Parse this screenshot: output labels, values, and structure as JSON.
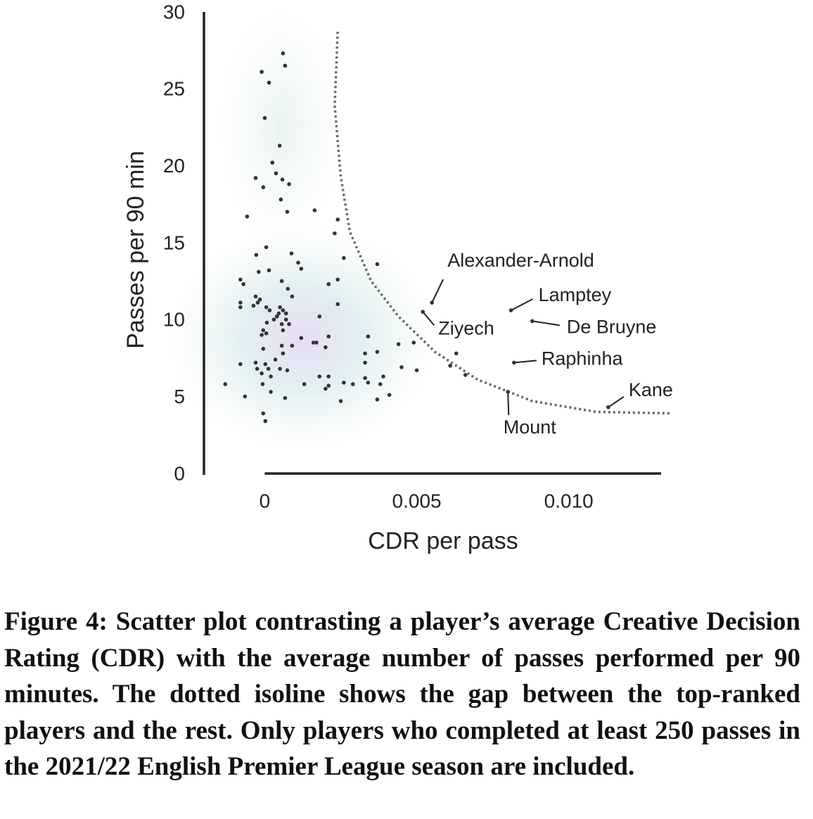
{
  "chart_data": {
    "type": "scatter",
    "xlabel": "CDR per pass",
    "ylabel": "Passes per 90 min",
    "xlim": [
      -0.002,
      0.0135
    ],
    "ylim": [
      0,
      30
    ],
    "xticks": [
      0,
      0.005,
      {
        "value": 0.01,
        "label": "0.010"
      }
    ],
    "yticks": [
      0,
      5,
      10,
      15,
      20,
      25,
      30
    ],
    "color": "#333333",
    "x": [
      0.0006,
      0.00067,
      -0.0001,
      0.00014,
      0,
      0.00049,
      0.00025,
      -0.0003,
      0.00037,
      0.00058,
      -5e-05,
      0.0008,
      0.00053,
      0.00074,
      0.00164,
      -0.00058,
      0.0024,
      0.0023,
      5e-05,
      0.00088,
      -0.00028,
      0.0026,
      0.0037,
      0.0011,
      0.0012,
      0.00014,
      -0.0002,
      -0.0008,
      -0.0007,
      0.00056,
      0.0021,
      0.0024,
      0.00076,
      0.0009,
      -0.0003,
      -0.00023,
      -0.00016,
      -0.0008,
      -0.0008,
      -0.00037,
      5e-05,
      0.00016,
      0.0005,
      0.0006,
      0.0007,
      0.00046,
      0.0004,
      0.0018,
      0.0024,
      0.0003,
      0.0007,
      7e-05,
      0.00056,
      0.0008,
      -5e-05,
      -0.0001,
      5e-05,
      0.0006,
      0.0012,
      0.0021,
      0.0016,
      0.0017,
      0.0034,
      0.00056,
      -5e-05,
      0.0009,
      0.002,
      0.0044,
      0.0049,
      0.0006,
      0.0037,
      0.0033,
      0.0063,
      -0.0008,
      -0.0003,
      0.00035,
      2e-05,
      0.00012,
      0.0005,
      0.00074,
      -0.00025,
      0.0033,
      0.0045,
      0.005,
      0.0061,
      -0.0001,
      0.0002,
      0.0018,
      0.0021,
      0.0066,
      0.0033,
      0.0034,
      0.0039,
      -0.0013,
      -7e-05,
      0.0013,
      0.0026,
      0.0029,
      0.002,
      0.0021,
      0.0038,
      0.0002,
      -0.00065,
      0.00067,
      0.0025,
      0.0037,
      0.0041,
      -5e-05,
      2e-05
    ],
    "y": [
      27.4,
      26.6,
      26.2,
      25.5,
      23.2,
      21.4,
      20.3,
      19.3,
      19.6,
      19.2,
      18.7,
      18.9,
      17.9,
      17.1,
      17.2,
      16.8,
      16.6,
      15.7,
      14.8,
      14.4,
      14.3,
      14.1,
      13.7,
      13.8,
      13.4,
      13.3,
      13.2,
      12.7,
      12.4,
      12.6,
      12.4,
      12.7,
      12.1,
      11.6,
      11.6,
      11.2,
      11.4,
      11.2,
      10.9,
      11.0,
      10.9,
      10.7,
      10.9,
      10.7,
      10.5,
      10.5,
      10.3,
      10.3,
      11.1,
      10.1,
      10.1,
      9.9,
      9.8,
      9.8,
      9.4,
      9.1,
      9.2,
      9.4,
      8.9,
      9.0,
      8.6,
      8.6,
      9.0,
      8.4,
      8.2,
      8.4,
      8.3,
      8.5,
      8.6,
      7.9,
      8.0,
      7.9,
      7.9,
      7.2,
      7.3,
      7.5,
      7.2,
      6.9,
      6.9,
      6.8,
      6.9,
      7.3,
      7.0,
      6.8,
      7.1,
      6.6,
      6.4,
      6.4,
      6.4,
      6.5,
      6.3,
      6.0,
      6.4,
      5.9,
      5.9,
      5.9,
      6.0,
      5.9,
      5.6,
      5.8,
      5.9,
      5.4,
      5.1,
      5.0,
      4.8,
      4.9,
      5.2,
      4.0,
      3.5
    ],
    "annotations": [
      {
        "text": "Alexander-Arnold",
        "x": 0.0055,
        "y": 11.2
      },
      {
        "text": "Ziyech",
        "x": 0.0052,
        "y": 10.6
      },
      {
        "text": "Lamptey",
        "x": 0.0081,
        "y": 10.7
      },
      {
        "text": "De Bruyne",
        "x": 0.0088,
        "y": 10.0
      },
      {
        "text": "Raphinha",
        "x": 0.0082,
        "y": 7.3
      },
      {
        "text": "Mount",
        "x": 0.008,
        "y": 5.4
      },
      {
        "text": "Kane",
        "x": 0.0113,
        "y": 4.4
      }
    ],
    "isoline": {
      "x": [
        0.0024,
        0.0023,
        0.0025,
        0.0028,
        0.0035,
        0.0044,
        0.0056,
        0.007,
        0.0088,
        0.0109,
        0.0134
      ],
      "y": [
        28.8,
        24,
        19.4,
        15.8,
        12.6,
        10.3,
        8.0,
        6.2,
        4.8,
        4.1,
        4.0
      ]
    }
  },
  "caption": "Figure 4: Scatter plot contrasting a player’s average Creative Decision Rating (CDR) with the average number of passes performed per 90 minutes. The dotted isoline shows the gap between the top-ranked players and the rest. Only players who completed at least 250 passes in the 2021/22 English Premier League season are included."
}
